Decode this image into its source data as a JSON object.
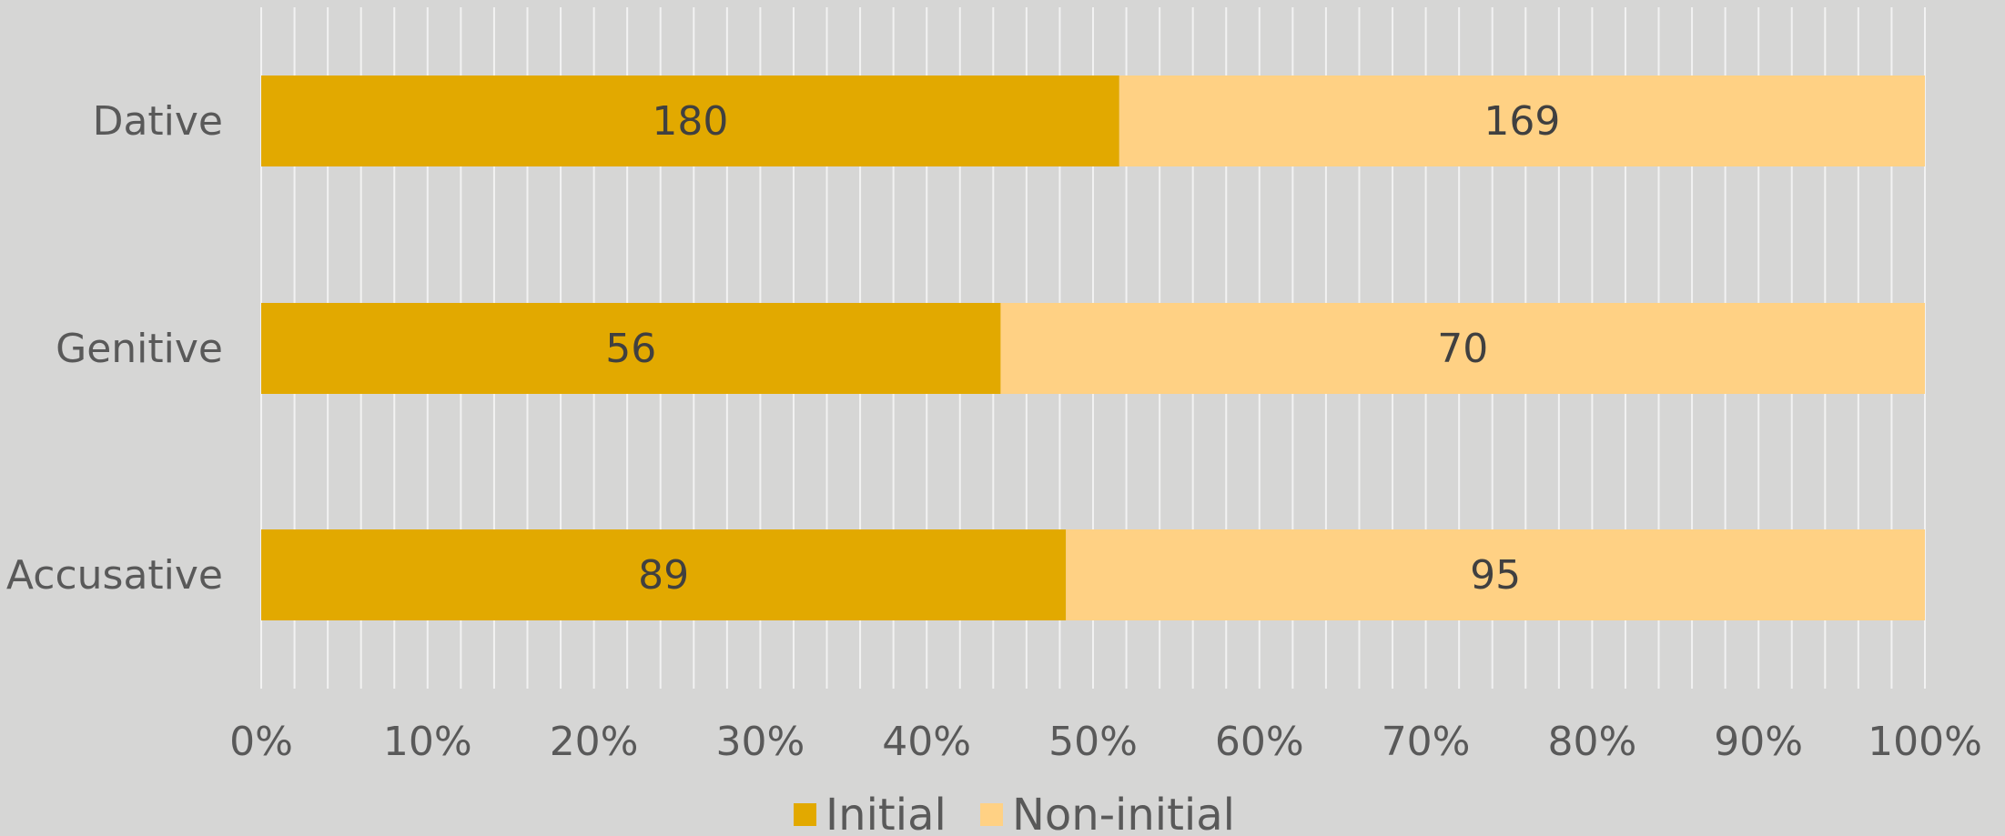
{
  "chart_data": {
    "type": "bar",
    "orientation": "horizontal",
    "stacked": "100%",
    "categories": [
      "Dative",
      "Genitive",
      "Accusative"
    ],
    "series": [
      {
        "name": "Initial",
        "values": [
          180,
          56,
          89
        ],
        "color": "#e2a900"
      },
      {
        "name": "Non-initial",
        "values": [
          169,
          70,
          95
        ],
        "color": "#ffd184"
      }
    ],
    "xaxis": {
      "ticks": [
        "0%",
        "10%",
        "20%",
        "30%",
        "40%",
        "50%",
        "60%",
        "70%",
        "80%",
        "90%",
        "100%"
      ],
      "range": [
        0,
        100
      ],
      "minor_gridline_step": 2
    },
    "grid": true,
    "legend": "bottom",
    "colors": {
      "background": "#d6d6d5",
      "gridline": "#f2f2f2"
    }
  }
}
